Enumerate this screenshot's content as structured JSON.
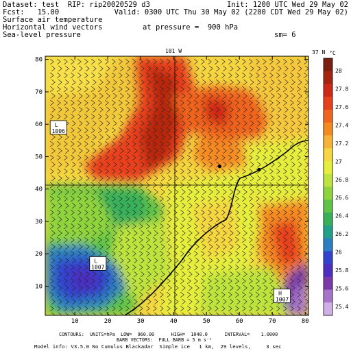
{
  "header": {
    "line1_left": "Dataset: test  RIP: rip20020529 d3",
    "line1_right": "Init: 1200 UTC Wed 29 May 02",
    "line2_left": "Fcst:   15.00",
    "line2_right": "Valid: 0300 UTC Thu 30 May 02 (2200 CDT Wed 29 May 02)",
    "line3": "Surface air temperature",
    "line4_left": "Horizontal wind vectors",
    "line4_mid": "at pressure =  900 hPa",
    "line5_left": "Sea-level pressure",
    "line5_right": "sm= 6"
  },
  "map": {
    "top_label": "101 W",
    "right_label": "37 N",
    "highs_lows": [
      {
        "letter": "L",
        "value": "1006"
      },
      {
        "letter": "L",
        "value": "1007"
      },
      {
        "letter": "H",
        "value": "1007"
      }
    ]
  },
  "footer": {
    "line1": "CONTOURS:  UNITS=hPa  LOW=  960.00      HIGH=  1040.0      INTERVAL=    1.0000",
    "line2": "BARB VECTORS:  FULL BARB = 5 m s⁻¹",
    "line3": "Model info: V3.5.0 No Cumulus Blackadar  Simple ice   1 km,  29 levels,     3 sec"
  },
  "chart_data": {
    "type": "heatmap",
    "title": "",
    "x_ticks": [
      10,
      20,
      30,
      40,
      50,
      60,
      70,
      80
    ],
    "y_ticks": [
      10,
      20,
      30,
      40,
      50,
      60,
      70,
      80
    ],
    "xlim": [
      1,
      81
    ],
    "ylim": [
      1,
      81
    ],
    "grid_lines": {
      "x": 40,
      "y": 41
    },
    "colorbar": {
      "unit": "°C",
      "labels": [
        "28",
        "27.8",
        "27.6",
        "27.4",
        "27.2",
        "27",
        "26.8",
        "26.6",
        "26.4",
        "26.2",
        "26",
        "25.8",
        "25.6",
        "25.4"
      ],
      "colors": [
        "#7a1f12",
        "#a5230f",
        "#cf2817",
        "#e8401c",
        "#f0641e",
        "#f58a20",
        "#f7b23a",
        "#f5d640",
        "#e6ee3c",
        "#bde33e",
        "#8fd43c",
        "#5fc347",
        "#38b05a",
        "#23a08a",
        "#2c7fc0",
        "#3243cf",
        "#4c2ec0",
        "#7a3aa8",
        "#a674c8",
        "#cfb0e6"
      ]
    },
    "points_of_interest": [
      {
        "x": 54,
        "y": 47
      },
      {
        "x": 66,
        "y": 46
      }
    ],
    "pressure_centers": [
      {
        "letter": "L",
        "value": 1006,
        "x": 5,
        "y": 59
      },
      {
        "letter": "L",
        "value": 1007,
        "x": 17,
        "y": 17
      },
      {
        "letter": "H",
        "value": 1007,
        "x": 73,
        "y": 7
      }
    ]
  }
}
